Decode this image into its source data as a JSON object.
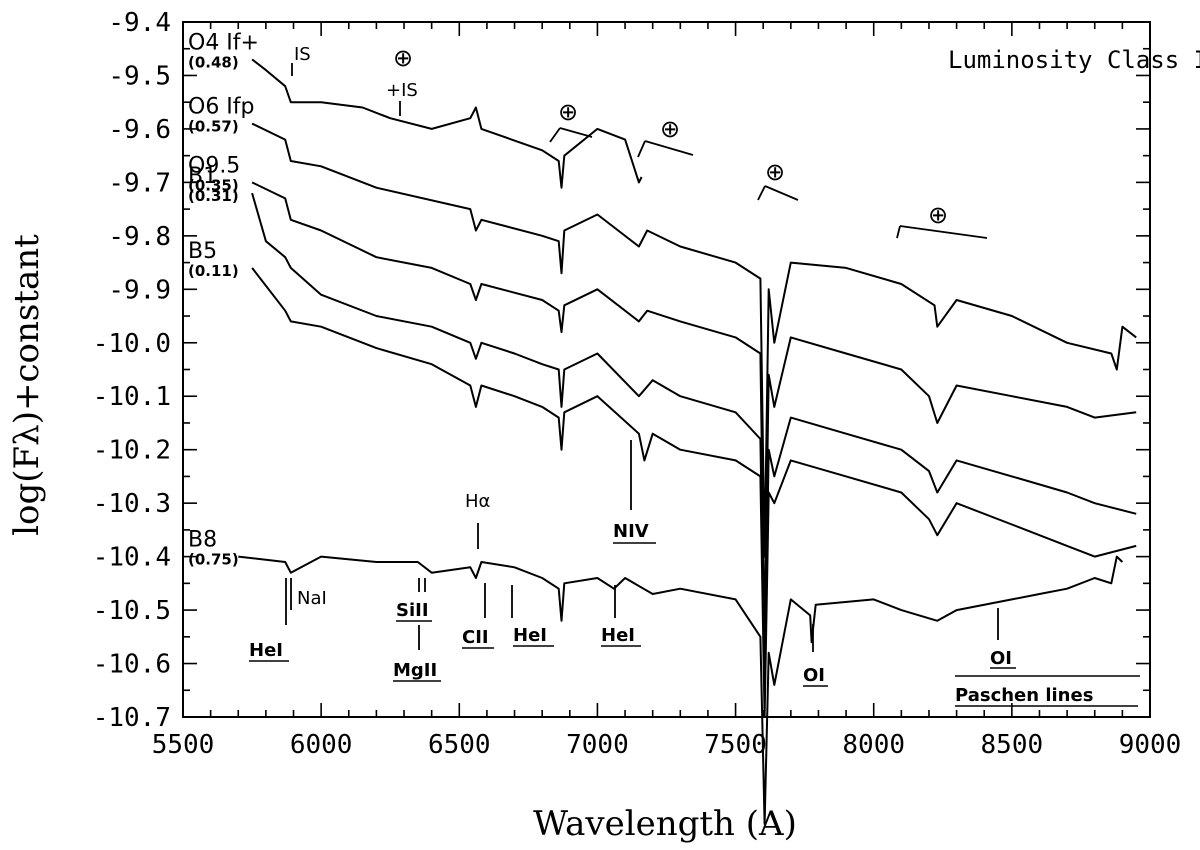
{
  "chart_data": {
    "type": "line",
    "title": "Luminosity Class Ib",
    "xlabel": "Wavelength (A)",
    "ylabel": "log(Fλ)+constant",
    "xlim": [
      5500,
      9000
    ],
    "ylim": [
      -10.7,
      -9.4
    ],
    "xticks": [
      "5500",
      "6000",
      "6500",
      "7000",
      "7500",
      "8000",
      "8500",
      "9000"
    ],
    "yticks": [
      "-9.4",
      "-9.5",
      "-9.6",
      "-9.7",
      "-9.8",
      "-9.9",
      "-10.0",
      "-10.1",
      "-10.2",
      "-10.3",
      "-10.4",
      "-10.5",
      "-10.6",
      "-10.7"
    ],
    "grid": false,
    "series": [
      {
        "name": "O4 If+",
        "reddening": "(0.48)",
        "x": [
          5750,
          5800,
          5870,
          5890,
          6000,
          6150,
          6250,
          6400,
          6540,
          6560,
          6580,
          6800,
          6860,
          6870,
          6880,
          7000,
          7100,
          7150,
          7160
        ],
        "y": [
          -9.47,
          -9.49,
          -9.52,
          -9.55,
          -9.55,
          -9.56,
          -9.58,
          -9.6,
          -9.58,
          -9.56,
          -9.6,
          -9.64,
          -9.66,
          -9.71,
          -9.65,
          -9.6,
          -9.62,
          -9.7,
          -9.69
        ]
      },
      {
        "name": "O6 Ifp",
        "reddening": "(0.57)",
        "x": [
          5750,
          5870,
          5890,
          6000,
          6200,
          6540,
          6560,
          6580,
          6800,
          6860,
          6870,
          6880,
          7000,
          7150,
          7180,
          7300,
          7500,
          7590,
          7605,
          7620,
          7640,
          7700,
          7900,
          8100,
          8220,
          8230,
          8300,
          8500,
          8700,
          8860,
          8880,
          8900,
          8950
        ],
        "y": [
          -9.59,
          -9.62,
          -9.66,
          -9.67,
          -9.71,
          -9.75,
          -9.79,
          -9.77,
          -9.8,
          -9.81,
          -9.87,
          -9.79,
          -9.76,
          -9.82,
          -9.79,
          -9.82,
          -9.85,
          -9.88,
          -10.4,
          -9.9,
          -10.0,
          -9.85,
          -9.86,
          -9.89,
          -9.93,
          -9.97,
          -9.92,
          -9.95,
          -10.0,
          -10.02,
          -10.05,
          -9.97,
          -9.99
        ]
      },
      {
        "name": "O9.5",
        "reddening": "(0.35)",
        "x": [
          5750,
          5870,
          5890,
          6000,
          6200,
          6400,
          6540,
          6560,
          6580,
          6800,
          6860,
          6870,
          6880,
          7000,
          7150,
          7180,
          7300,
          7500,
          7590,
          7605,
          7620,
          7640,
          7700,
          7900,
          8100,
          8200,
          8230,
          8300,
          8500,
          8700,
          8800,
          8950
        ],
        "y": [
          -9.7,
          -9.73,
          -9.77,
          -9.79,
          -9.84,
          -9.86,
          -9.89,
          -9.92,
          -9.89,
          -9.92,
          -9.94,
          -9.98,
          -9.93,
          -9.9,
          -9.96,
          -9.94,
          -9.96,
          -9.99,
          -10.02,
          -10.55,
          -10.06,
          -10.12,
          -9.99,
          -10.02,
          -10.05,
          -10.1,
          -10.15,
          -10.08,
          -10.1,
          -10.12,
          -10.14,
          -10.13
        ]
      },
      {
        "name": "B1",
        "reddening": "(0.31)",
        "x": [
          5750,
          5800,
          5870,
          5890,
          6000,
          6200,
          6400,
          6540,
          6560,
          6580,
          6700,
          6800,
          6860,
          6870,
          6880,
          7000,
          7150,
          7200,
          7300,
          7500,
          7590,
          7605,
          7620,
          7640,
          7700,
          7900,
          8100,
          8200,
          8230,
          8300,
          8500,
          8700,
          8800,
          8950
        ],
        "y": [
          -9.72,
          -9.81,
          -9.84,
          -9.86,
          -9.91,
          -9.95,
          -9.97,
          -10.0,
          -10.03,
          -10.0,
          -10.02,
          -10.04,
          -10.05,
          -10.12,
          -10.05,
          -10.02,
          -10.1,
          -10.07,
          -10.1,
          -10.13,
          -10.18,
          -10.65,
          -10.2,
          -10.25,
          -10.14,
          -10.17,
          -10.2,
          -10.24,
          -10.28,
          -10.22,
          -10.25,
          -10.28,
          -10.3,
          -10.32
        ]
      },
      {
        "name": "B5",
        "reddening": "(0.11)",
        "x": [
          5750,
          5870,
          5890,
          6000,
          6200,
          6400,
          6540,
          6560,
          6580,
          6700,
          6800,
          6860,
          6870,
          6880,
          7000,
          7150,
          7170,
          7200,
          7300,
          7500,
          7590,
          7605,
          7620,
          7640,
          7700,
          7900,
          8100,
          8200,
          8230,
          8300,
          8500,
          8700,
          8800,
          8950
        ],
        "y": [
          -9.86,
          -9.94,
          -9.96,
          -9.97,
          -10.01,
          -10.04,
          -10.08,
          -10.12,
          -10.08,
          -10.1,
          -10.12,
          -10.14,
          -10.2,
          -10.13,
          -10.1,
          -10.17,
          -10.22,
          -10.17,
          -10.2,
          -10.22,
          -10.25,
          -10.7,
          -10.28,
          -10.3,
          -10.22,
          -10.25,
          -10.28,
          -10.33,
          -10.36,
          -10.3,
          -10.34,
          -10.38,
          -10.4,
          -10.38
        ]
      },
      {
        "name": "B8",
        "reddening": "(0.75)",
        "x": [
          5700,
          5870,
          5890,
          6000,
          6200,
          6350,
          6400,
          6540,
          6560,
          6580,
          6700,
          6800,
          6860,
          6870,
          6880,
          7000,
          7060,
          7100,
          7200,
          7300,
          7500,
          7590,
          7605,
          7620,
          7640,
          7700,
          7770,
          7775,
          7790,
          8000,
          8100,
          8230,
          8300,
          8500,
          8600,
          8700,
          8800,
          8860,
          8880,
          8900
        ],
        "y": [
          -10.4,
          -10.41,
          -10.43,
          -10.4,
          -10.41,
          -10.41,
          -10.43,
          -10.42,
          -10.44,
          -10.41,
          -10.42,
          -10.44,
          -10.46,
          -10.52,
          -10.45,
          -10.44,
          -10.46,
          -10.44,
          -10.47,
          -10.46,
          -10.48,
          -10.55,
          -10.9,
          -10.58,
          -10.64,
          -10.48,
          -10.51,
          -10.56,
          -10.49,
          -10.48,
          -10.5,
          -10.52,
          -10.5,
          -10.48,
          -10.47,
          -10.46,
          -10.44,
          -10.45,
          -10.4,
          -10.41
        ]
      }
    ],
    "annotations": {
      "IS": "IS",
      "earth_plus_IS": "+IS",
      "earth": "⊕",
      "Halpha": "Hα",
      "NIV": "NIV",
      "NaI": "NaI",
      "HeI_a": "HeI",
      "SiII": "SiII",
      "MgII": "MgII",
      "CII": "CII",
      "HeI_b": "HeI",
      "HeI_c": "HeI",
      "OI_a": "OI",
      "OI_b": "OI",
      "Paschen": "Paschen lines"
    }
  }
}
